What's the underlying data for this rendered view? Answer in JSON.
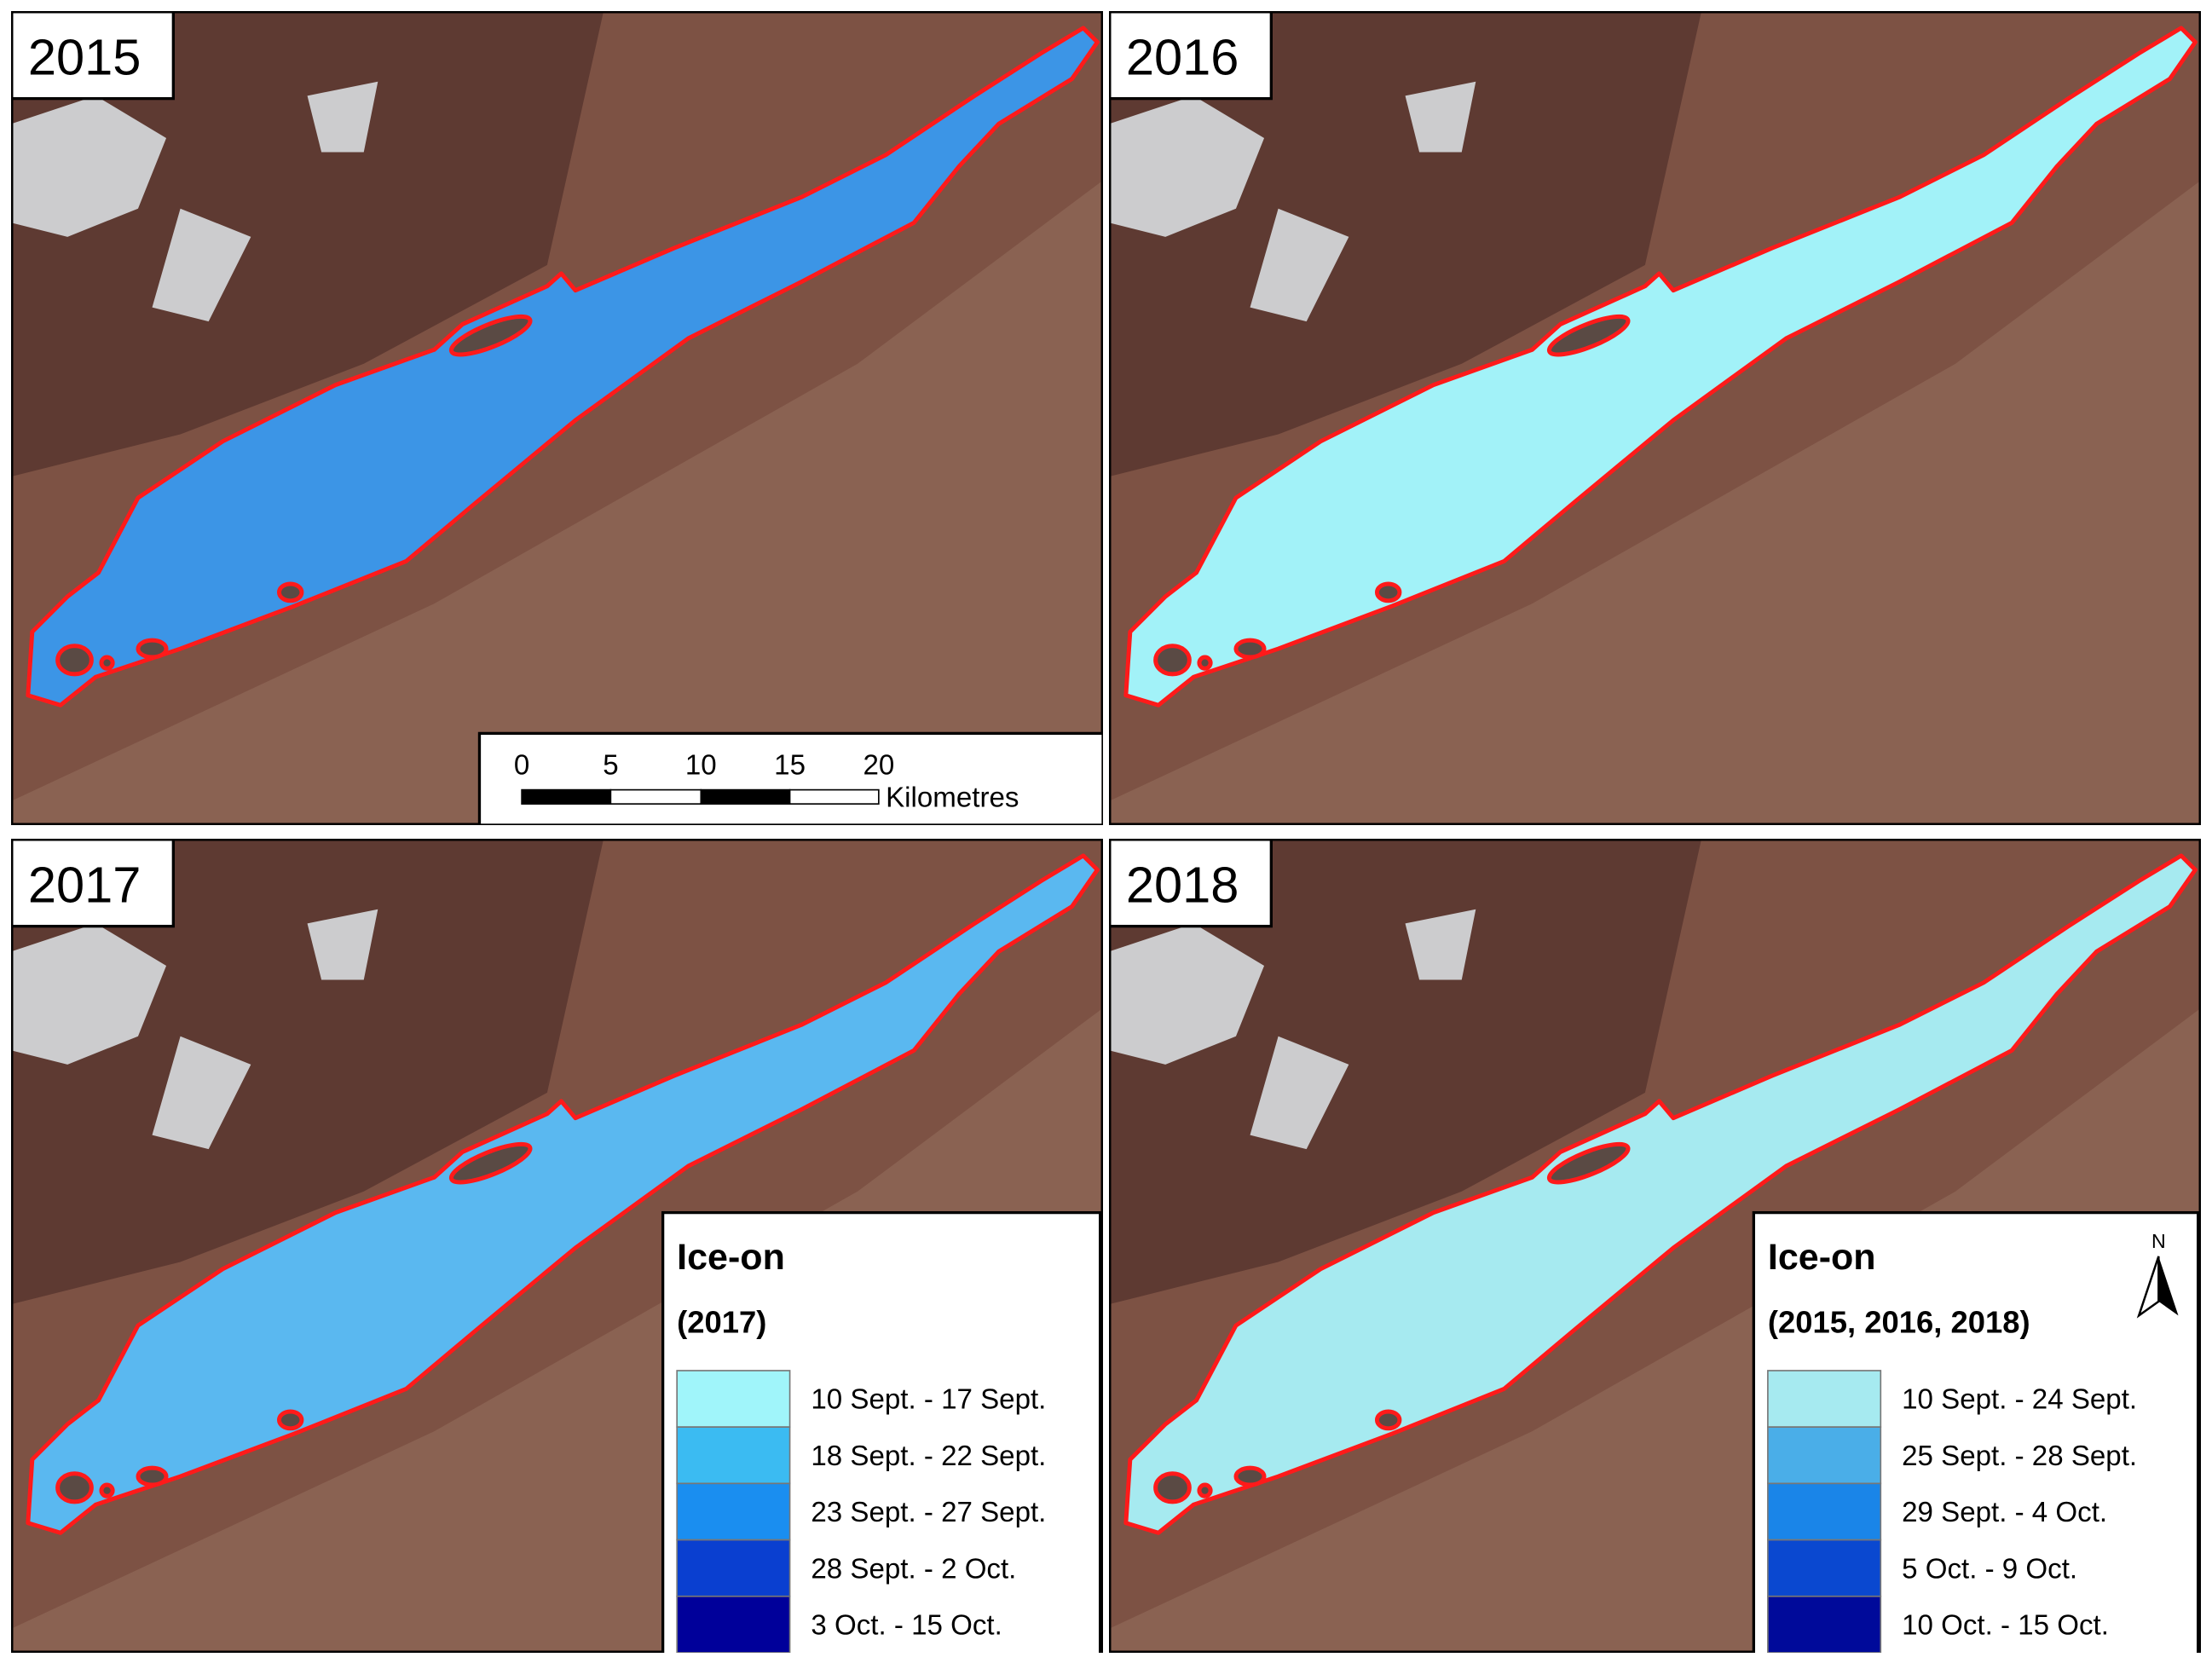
{
  "panels": [
    {
      "year": "2015",
      "lake_color": "#3c95e6"
    },
    {
      "year": "2016",
      "lake_color": "#a2f2f8"
    },
    {
      "year": "2017",
      "lake_color": "#5ab8f0"
    },
    {
      "year": "2018",
      "lake_color": "#a6eaf0"
    }
  ],
  "scale_bar": {
    "ticks": [
      "0",
      "5",
      "10",
      "15",
      "20"
    ],
    "unit": "Kilometres"
  },
  "legends": [
    {
      "title": "Ice-on",
      "subtitle": "(2017)",
      "items": [
        {
          "label": "10 Sept. - 17 Sept.",
          "color": "#a0f5fa"
        },
        {
          "label": "18 Sept. - 22 Sept.",
          "color": "#3bbbf2"
        },
        {
          "label": "23 Sept. - 27 Sept.",
          "color": "#1a8ef0"
        },
        {
          "label": "28 Sept. - 2 Oct.",
          "color": "#0a3fd0"
        },
        {
          "label": "3 Oct. - 15 Oct.",
          "color": "#00009a"
        }
      ]
    },
    {
      "title": "Ice-on",
      "subtitle": "(2015, 2016, 2018)",
      "items": [
        {
          "label": "10 Sept. - 24 Sept.",
          "color": "#a6eaf0"
        },
        {
          "label": "25 Sept. - 28 Sept.",
          "color": "#4aaee8"
        },
        {
          "label": "29 Sept. - 4 Oct.",
          "color": "#1a85e8"
        },
        {
          "label": "5 Oct. - 9 Oct.",
          "color": "#0a48d0"
        },
        {
          "label": "10 Oct. - 15 Oct.",
          "color": "#000a9a"
        }
      ]
    }
  ],
  "north_arrow": "N"
}
